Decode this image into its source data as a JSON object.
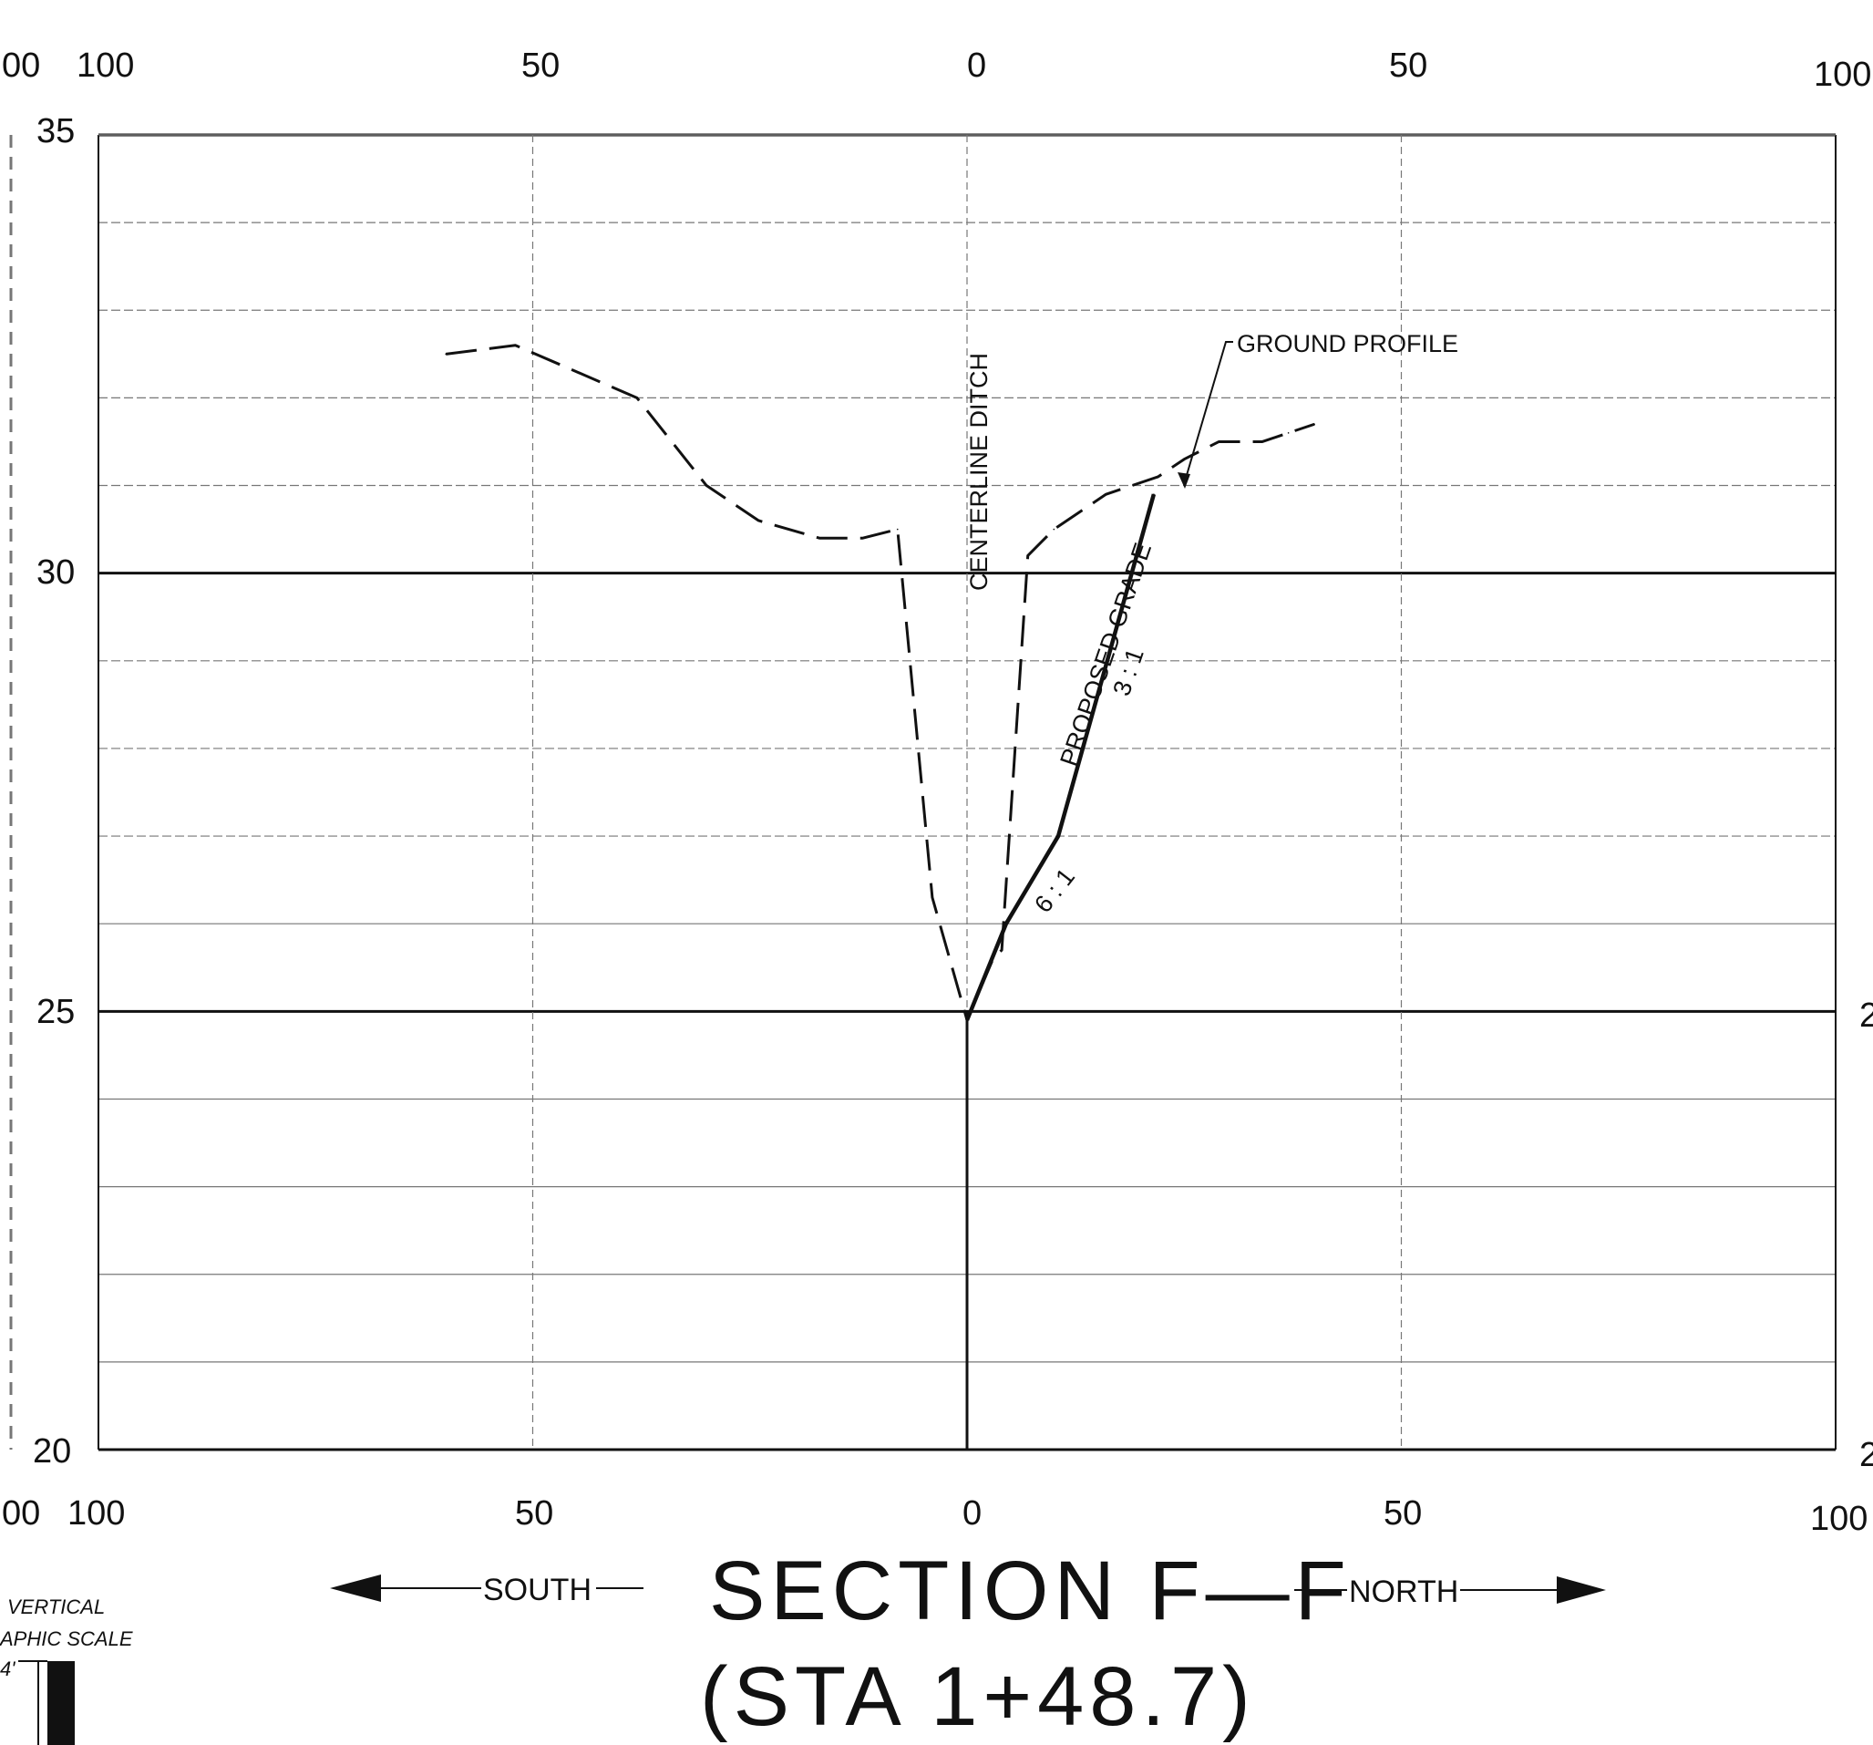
{
  "chart_data": {
    "type": "line",
    "title": "SECTION F—F",
    "subtitle": "(STA 1+48.7)",
    "x_ticks_top": [
      "100",
      "50",
      "0",
      "50",
      "100"
    ],
    "x_ticks_bottom": [
      "100",
      "50",
      "0",
      "50",
      "100"
    ],
    "x_ticks_left_partial": "00",
    "y_ticks_left": [
      "35",
      "30",
      "25",
      "20"
    ],
    "y_ticks_right_partial": [
      "2",
      "2"
    ],
    "xlim": [
      -100,
      100
    ],
    "ylim": [
      20,
      35
    ],
    "grid": true,
    "direction_left": "SOUTH",
    "direction_right": "NORTH",
    "centerline_label": "CENTERLINE DITCH",
    "series": [
      {
        "name": "GROUND PROFILE",
        "style": "dashed",
        "x": [
          -60,
          -52,
          -38,
          -30,
          -24,
          -17,
          -12,
          -8,
          -4,
          0,
          3,
          4,
          7,
          10,
          16,
          22,
          25,
          29,
          34,
          37,
          40
        ],
        "y": [
          32.5,
          32.6,
          32.0,
          31.0,
          30.6,
          30.4,
          30.4,
          30.5,
          26.3,
          24.9,
          25.6,
          25.7,
          30.2,
          30.5,
          30.9,
          31.1,
          31.3,
          31.5,
          31.5,
          31.6,
          31.7
        ]
      },
      {
        "name": "PROPOSED GRADE",
        "style": "solid",
        "x": [
          0,
          4.5,
          10.5,
          21.5
        ],
        "y": [
          24.9,
          26.0,
          27.0,
          30.9
        ]
      }
    ],
    "annotations": [
      {
        "text": "6 : 1"
      },
      {
        "text": "3 : 1"
      }
    ]
  },
  "scale_labels": {
    "line1": "VERTICAL",
    "line2": "APHIC SCALE",
    "line3": "4'"
  },
  "colors": {
    "ink": "#111111",
    "grid": "#777777"
  }
}
